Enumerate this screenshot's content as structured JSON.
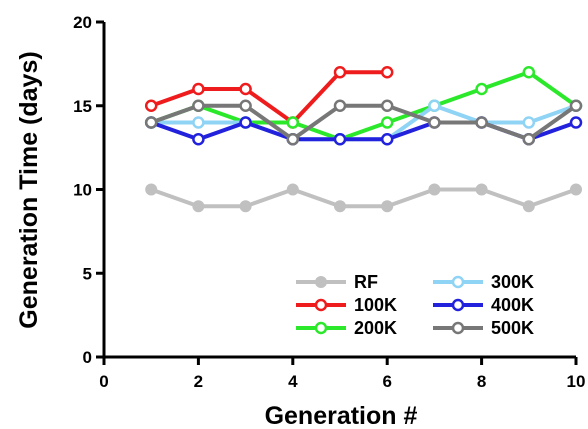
{
  "chart_data": {
    "type": "line",
    "xlabel": "Generation #",
    "ylabel": "Generation Time (days)",
    "xlim": [
      0,
      10
    ],
    "ylim": [
      0,
      20
    ],
    "xticks": [
      0,
      2,
      4,
      6,
      8,
      10
    ],
    "yticks": [
      0,
      5,
      10,
      15,
      20
    ],
    "grid": false,
    "legend_position": "bottom-right",
    "series": [
      {
        "name": "RF",
        "color": "#c0c0c0",
        "marker": "filled",
        "x": [
          1,
          2,
          3,
          4,
          5,
          6,
          7,
          8,
          9,
          10
        ],
        "y": [
          10,
          9,
          9,
          10,
          9,
          9,
          10,
          10,
          9,
          10
        ]
      },
      {
        "name": "100K",
        "color": "#ee1c1c",
        "marker": "open",
        "x": [
          1,
          2,
          3,
          4,
          5,
          6
        ],
        "y": [
          15,
          16,
          16,
          14,
          17,
          17
        ]
      },
      {
        "name": "200K",
        "color": "#2be82b",
        "marker": "open",
        "x": [
          1,
          2,
          3,
          4,
          5,
          6,
          7,
          8,
          9,
          10
        ],
        "y": [
          14,
          15,
          14,
          14,
          13,
          14,
          15,
          16,
          17,
          15
        ]
      },
      {
        "name": "300K",
        "color": "#8fd3f5",
        "marker": "open",
        "x": [
          1,
          2,
          3,
          4,
          5,
          6,
          7,
          8,
          9,
          10
        ],
        "y": [
          14,
          14,
          14,
          13,
          13,
          13,
          15,
          14,
          14,
          15
        ]
      },
      {
        "name": "400K",
        "color": "#2222dd",
        "marker": "open",
        "x": [
          1,
          2,
          3,
          4,
          5,
          6,
          7,
          8,
          9,
          10
        ],
        "y": [
          14,
          13,
          14,
          13,
          13,
          13,
          14,
          14,
          13,
          14
        ]
      },
      {
        "name": "500K",
        "color": "#777777",
        "marker": "open",
        "x": [
          1,
          2,
          3,
          4,
          5,
          6,
          7,
          8,
          9,
          10
        ],
        "y": [
          14,
          15,
          15,
          13,
          15,
          15,
          14,
          14,
          13,
          15
        ]
      }
    ]
  }
}
